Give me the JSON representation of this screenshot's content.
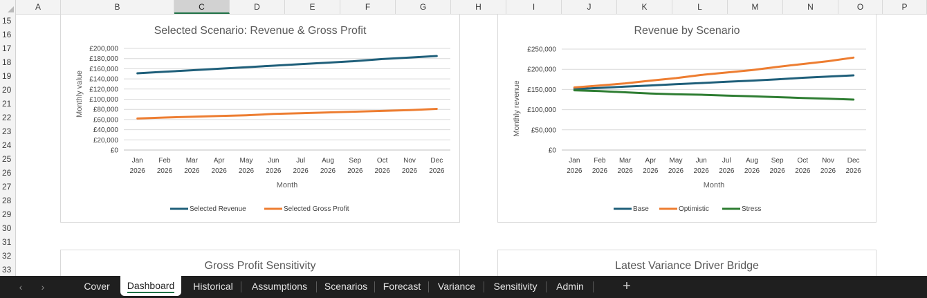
{
  "columns": [
    "A",
    "B",
    "C",
    "D",
    "E",
    "F",
    "G",
    "H",
    "I",
    "J",
    "K",
    "L",
    "M",
    "N",
    "O",
    "P"
  ],
  "selected_column": "C",
  "rows": [
    "15",
    "16",
    "17",
    "18",
    "19",
    "20",
    "21",
    "22",
    "23",
    "24",
    "25",
    "26",
    "27",
    "28",
    "29",
    "30",
    "31",
    "32",
    "33"
  ],
  "charts": {
    "selected_scenario": {
      "title": "Selected Scenario: Revenue & Gross Profit",
      "xlabel": "Month",
      "ylabel": "Monthly value",
      "y_ticks": [
        "£200,000",
        "£180,000",
        "£160,000",
        "£140,000",
        "£120,000",
        "£100,000",
        "£80,000",
        "£60,000",
        "£40,000",
        "£20,000",
        "£0"
      ],
      "x_months": [
        "Jan",
        "Feb",
        "Mar",
        "Apr",
        "May",
        "Jun",
        "Jul",
        "Aug",
        "Sep",
        "Oct",
        "Nov",
        "Dec"
      ],
      "x_year": "2026",
      "legend": [
        "Selected Revenue",
        "Selected Gross Profit"
      ]
    },
    "revenue_by_scenario": {
      "title": "Revenue by Scenario",
      "xlabel": "Month",
      "ylabel": "Monthly revenue",
      "y_ticks": [
        "£250,000",
        "£200,000",
        "£150,000",
        "£100,000",
        "£50,000",
        "£0"
      ],
      "x_months": [
        "Jan",
        "Feb",
        "Mar",
        "Apr",
        "May",
        "Jun",
        "Jul",
        "Aug",
        "Sep",
        "Oct",
        "Nov",
        "Dec"
      ],
      "x_year": "2026",
      "legend": [
        "Base",
        "Optimistic",
        "Stress"
      ]
    },
    "gross_profit_sensitivity": {
      "title": "Gross Profit Sensitivity"
    },
    "variance_driver_bridge": {
      "title": "Latest Variance Driver Bridge"
    }
  },
  "chart_data": [
    {
      "type": "line",
      "title": "Selected Scenario: Revenue & Gross Profit",
      "xlabel": "Month",
      "ylabel": "Monthly value",
      "categories": [
        "Jan 2026",
        "Feb 2026",
        "Mar 2026",
        "Apr 2026",
        "May 2026",
        "Jun 2026",
        "Jul 2026",
        "Aug 2026",
        "Sep 2026",
        "Oct 2026",
        "Nov 2026",
        "Dec 2026"
      ],
      "ylim": [
        0,
        200000
      ],
      "grid": true,
      "legend": "bottom",
      "series": [
        {
          "name": "Selected Revenue",
          "color": "#1f5f7a",
          "values": [
            151000,
            154000,
            157000,
            160000,
            163000,
            166000,
            169000,
            172000,
            175000,
            179000,
            182000,
            185000
          ]
        },
        {
          "name": "Selected Gross Profit",
          "color": "#ed7d31",
          "values": [
            62000,
            64000,
            65500,
            67000,
            68500,
            71000,
            72500,
            74000,
            75500,
            77000,
            78500,
            81000
          ]
        }
      ]
    },
    {
      "type": "line",
      "title": "Revenue by Scenario",
      "xlabel": "Month",
      "ylabel": "Monthly revenue",
      "categories": [
        "Jan 2026",
        "Feb 2026",
        "Mar 2026",
        "Apr 2026",
        "May 2026",
        "Jun 2026",
        "Jul 2026",
        "Aug 2026",
        "Sep 2026",
        "Oct 2026",
        "Nov 2026",
        "Dec 2026"
      ],
      "ylim": [
        0,
        250000
      ],
      "grid": true,
      "legend": "bottom",
      "series": [
        {
          "name": "Base",
          "color": "#1f5f7a",
          "values": [
            151000,
            154000,
            157000,
            160000,
            163000,
            166000,
            169000,
            172000,
            175000,
            179000,
            182000,
            185000
          ]
        },
        {
          "name": "Optimistic",
          "color": "#ed7d31",
          "values": [
            155000,
            160000,
            165000,
            172000,
            178000,
            186000,
            192000,
            198000,
            206000,
            213000,
            220000,
            229000
          ]
        },
        {
          "name": "Stress",
          "color": "#2e7d32",
          "values": [
            148000,
            146000,
            143000,
            140000,
            138000,
            137000,
            135000,
            133000,
            131000,
            129000,
            127000,
            125000
          ]
        }
      ]
    }
  ],
  "sheet_tabs": [
    "Cover",
    "Dashboard",
    "Historical",
    "Assumptions",
    "Scenarios",
    "Forecast",
    "Variance",
    "Sensitivity",
    "Admin"
  ],
  "active_tab": "Dashboard",
  "nav": {
    "prev": "‹",
    "next": "›",
    "add": "+"
  }
}
